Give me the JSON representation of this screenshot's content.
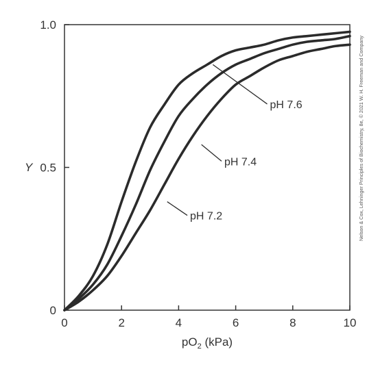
{
  "chart_data": {
    "type": "line",
    "title": "",
    "xlabel": {
      "prefix": "pO",
      "sub": "2",
      "suffix": " (kPa)"
    },
    "ylabel": "Y",
    "xlim": [
      0,
      10
    ],
    "ylim": [
      0,
      1
    ],
    "x_ticks": [
      0,
      2,
      4,
      6,
      8,
      10
    ],
    "x_tick_labels": [
      "0",
      "2",
      "4",
      "6",
      "8",
      "10"
    ],
    "y_ticks": [
      0,
      0.5,
      1.0
    ],
    "y_tick_labels": [
      "0",
      "0.5",
      "1.0"
    ],
    "grid": false,
    "series": [
      {
        "name": "pH 7.6",
        "label_at": {
          "x": 5.2,
          "y": 0.86
        },
        "label_pos": {
          "x": 7.2,
          "y": 0.71
        },
        "x": [
          0,
          0.5,
          1,
          1.5,
          2,
          2.5,
          3,
          3.5,
          4,
          4.5,
          5,
          5.5,
          6,
          6.5,
          7,
          7.5,
          8,
          8.5,
          9,
          9.5,
          10
        ],
        "y": [
          0,
          0.05,
          0.12,
          0.23,
          0.38,
          0.52,
          0.64,
          0.72,
          0.79,
          0.83,
          0.86,
          0.89,
          0.91,
          0.92,
          0.93,
          0.945,
          0.955,
          0.96,
          0.965,
          0.97,
          0.975
        ]
      },
      {
        "name": "pH 7.4",
        "label_at": {
          "x": 4.8,
          "y": 0.58
        },
        "label_pos": {
          "x": 5.6,
          "y": 0.51
        },
        "x": [
          0,
          0.5,
          1,
          1.5,
          2,
          2.5,
          3,
          3.5,
          4,
          4.5,
          5,
          5.5,
          6,
          6.5,
          7,
          7.5,
          8,
          8.5,
          9,
          9.5,
          10
        ],
        "y": [
          0,
          0.04,
          0.09,
          0.16,
          0.26,
          0.37,
          0.49,
          0.59,
          0.68,
          0.74,
          0.79,
          0.83,
          0.86,
          0.88,
          0.9,
          0.915,
          0.93,
          0.94,
          0.945,
          0.95,
          0.96
        ]
      },
      {
        "name": "pH 7.2",
        "label_at": {
          "x": 3.6,
          "y": 0.38
        },
        "label_pos": {
          "x": 4.4,
          "y": 0.32
        },
        "x": [
          0,
          0.5,
          1,
          1.5,
          2,
          2.5,
          3,
          3.5,
          4,
          4.5,
          5,
          5.5,
          6,
          6.5,
          7,
          7.5,
          8,
          8.5,
          9,
          9.5,
          10
        ],
        "y": [
          0,
          0.03,
          0.07,
          0.12,
          0.19,
          0.27,
          0.35,
          0.44,
          0.53,
          0.61,
          0.68,
          0.74,
          0.79,
          0.82,
          0.85,
          0.875,
          0.89,
          0.905,
          0.915,
          0.925,
          0.93
        ]
      }
    ]
  },
  "credit": "Nelson & Cox, Lehninger Principles of Biochemistry, 8e, © 2021 W. H. Freeman and Company",
  "colors": {
    "line": "#2b2b2b",
    "axis": "#333333",
    "text": "#333333"
  }
}
